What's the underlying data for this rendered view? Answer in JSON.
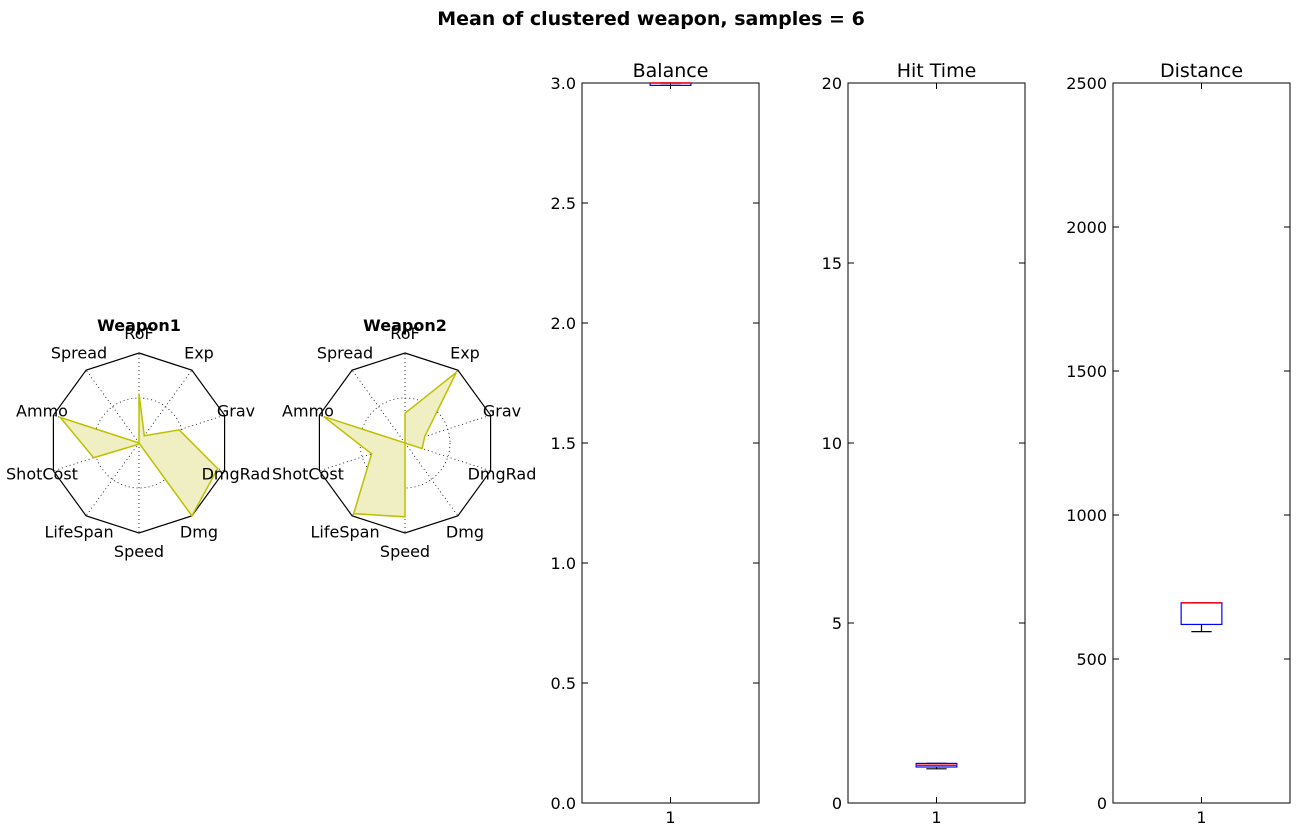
{
  "figure": {
    "title": "Mean of clustered weapon, samples = 6"
  },
  "chart_data": [
    {
      "type": "radar",
      "title": "Weapon1",
      "axes": [
        "RoF",
        "Exp",
        "Grav",
        "DmgRad",
        "Dmg",
        "Speed",
        "LifeSpan",
        "ShotCost",
        "Ammo",
        "Spread"
      ],
      "range": [
        0,
        1
      ],
      "values": [
        0.55,
        0.1,
        0.47,
        0.92,
        1.0,
        0.0,
        0.02,
        0.53,
        0.92,
        0.0
      ],
      "color": "#bfbf00",
      "fill": "#efefc3"
    },
    {
      "type": "radar",
      "title": "Weapon2",
      "axes": [
        "RoF",
        "Exp",
        "Grav",
        "DmgRad",
        "Dmg",
        "Speed",
        "LifeSpan",
        "ShotCost",
        "Ammo",
        "Spread"
      ],
      "range": [
        0,
        1
      ],
      "values": [
        0.33,
        0.97,
        0.23,
        0.2,
        0.0,
        0.82,
        0.97,
        0.39,
        0.95,
        0.0
      ],
      "color": "#bfbf00",
      "fill": "#efefc3"
    },
    {
      "type": "box",
      "title": "Balance",
      "xticks": [
        "1"
      ],
      "ylim": [
        0,
        3.0
      ],
      "yticks": [
        "0.0",
        "0.5",
        "1.0",
        "1.5",
        "2.0",
        "2.5",
        "3.0"
      ],
      "ytick_values": [
        0,
        0.5,
        1.0,
        1.5,
        2.0,
        2.5,
        3.0
      ],
      "stats": {
        "whislo": 2.99,
        "q1": 2.99,
        "median": 3.0,
        "q3": 3.0,
        "whishi": 3.0
      }
    },
    {
      "type": "box",
      "title": "Hit Time",
      "xticks": [
        "1"
      ],
      "ylim": [
        0,
        20
      ],
      "yticks": [
        "0",
        "5",
        "10",
        "15",
        "20"
      ],
      "ytick_values": [
        0,
        5,
        10,
        15,
        20
      ],
      "stats": {
        "whislo": 0.95,
        "q1": 1.0,
        "median": 1.05,
        "q3": 1.1,
        "whishi": 1.1
      }
    },
    {
      "type": "box",
      "title": "Distance",
      "xticks": [
        "1"
      ],
      "ylim": [
        0,
        2500
      ],
      "yticks": [
        "0",
        "500",
        "1000",
        "1500",
        "2000",
        "2500"
      ],
      "ytick_values": [
        0,
        500,
        1000,
        1500,
        2000,
        2500
      ],
      "stats": {
        "whislo": 595,
        "q1": 620,
        "median": 695,
        "q3": 695,
        "whishi": 695
      }
    }
  ],
  "colors": {
    "box": "#0000ff",
    "median": "#ff0000",
    "whisker": "#000000"
  }
}
